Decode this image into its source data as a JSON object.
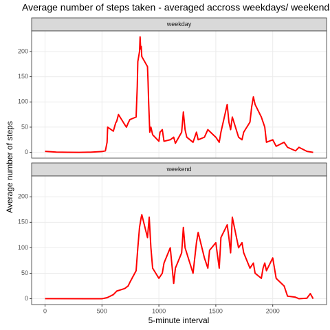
{
  "title": "Average number of steps taken - averaged accross weekdays/ weekends",
  "x_label": "5-minute interval",
  "y_label": "Average number of steps",
  "chart_data": [
    {
      "type": "line",
      "panel": "weekday",
      "color": "#ff0000",
      "grid": true,
      "xlim": [
        -117.75,
        2472.75
      ],
      "ylim": [
        -11.47,
        240.84
      ],
      "xticks": [
        0,
        500,
        1000,
        1500,
        2000
      ],
      "yticks": [
        0,
        50,
        100,
        150,
        200
      ],
      "x": [
        0,
        100,
        200,
        300,
        400,
        500,
        530,
        545,
        550,
        600,
        620,
        630,
        645,
        700,
        715,
        730,
        745,
        800,
        810,
        815,
        830,
        835,
        840,
        845,
        850,
        900,
        905,
        910,
        920,
        930,
        945,
        1000,
        1010,
        1030,
        1045,
        1100,
        1130,
        1145,
        1200,
        1215,
        1230,
        1245,
        1300,
        1330,
        1345,
        1400,
        1430,
        1500,
        1530,
        1545,
        1600,
        1615,
        1630,
        1645,
        1700,
        1730,
        1745,
        1800,
        1815,
        1830,
        1845,
        1900,
        1930,
        1945,
        2000,
        2030,
        2100,
        2130,
        2200,
        2230,
        2300,
        2355
      ],
      "values": [
        2,
        0.4,
        0.2,
        0,
        0.3,
        1.6,
        3,
        20,
        50,
        42,
        58,
        62,
        75,
        55,
        50,
        58,
        65,
        70,
        130,
        180,
        200,
        229,
        205,
        210,
        190,
        170,
        140,
        100,
        40,
        50,
        35,
        22,
        40,
        45,
        22,
        25,
        30,
        18,
        40,
        80,
        45,
        30,
        20,
        40,
        25,
        30,
        45,
        30,
        20,
        40,
        95,
        60,
        45,
        70,
        30,
        25,
        40,
        60,
        90,
        110,
        95,
        70,
        50,
        20,
        25,
        12,
        20,
        10,
        3,
        10,
        2,
        0
      ]
    },
    {
      "type": "line",
      "panel": "weekend",
      "color": "#ff0000",
      "grid": true,
      "xlim": [
        -117.75,
        2472.75
      ],
      "ylim": [
        -11.47,
        240.84
      ],
      "xticks": [
        0,
        500,
        1000,
        1500,
        2000
      ],
      "yticks": [
        0,
        50,
        100,
        150,
        200
      ],
      "x": [
        0,
        500,
        545,
        600,
        630,
        700,
        730,
        745,
        800,
        815,
        830,
        845,
        850,
        900,
        915,
        930,
        945,
        1000,
        1030,
        1045,
        1100,
        1130,
        1145,
        1200,
        1215,
        1230,
        1300,
        1315,
        1330,
        1345,
        1400,
        1430,
        1445,
        1500,
        1530,
        1545,
        1600,
        1615,
        1630,
        1645,
        1700,
        1730,
        1745,
        1800,
        1830,
        1845,
        1900,
        1915,
        1930,
        1945,
        2000,
        2030,
        2100,
        2130,
        2200,
        2230,
        2300,
        2330,
        2355
      ],
      "values": [
        0.2,
        0,
        2,
        8,
        15,
        20,
        25,
        32,
        55,
        100,
        140,
        160,
        165,
        120,
        160,
        100,
        60,
        40,
        50,
        70,
        100,
        30,
        60,
        90,
        140,
        100,
        50,
        80,
        110,
        130,
        80,
        60,
        95,
        110,
        60,
        120,
        145,
        120,
        90,
        160,
        100,
        110,
        90,
        60,
        70,
        50,
        40,
        60,
        70,
        55,
        80,
        40,
        25,
        5,
        3,
        0,
        1,
        10,
        0
      ]
    }
  ]
}
